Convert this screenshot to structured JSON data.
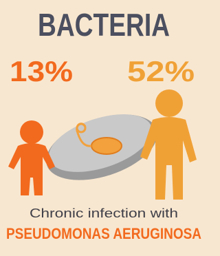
{
  "title": "BACTERIA",
  "stats": [
    {
      "label": "13%"
    },
    {
      "label": "52%"
    }
  ],
  "caption": {
    "line1": "Chronic infection with",
    "line2": "PSEUDOMONAS AERUGINOSA"
  }
}
